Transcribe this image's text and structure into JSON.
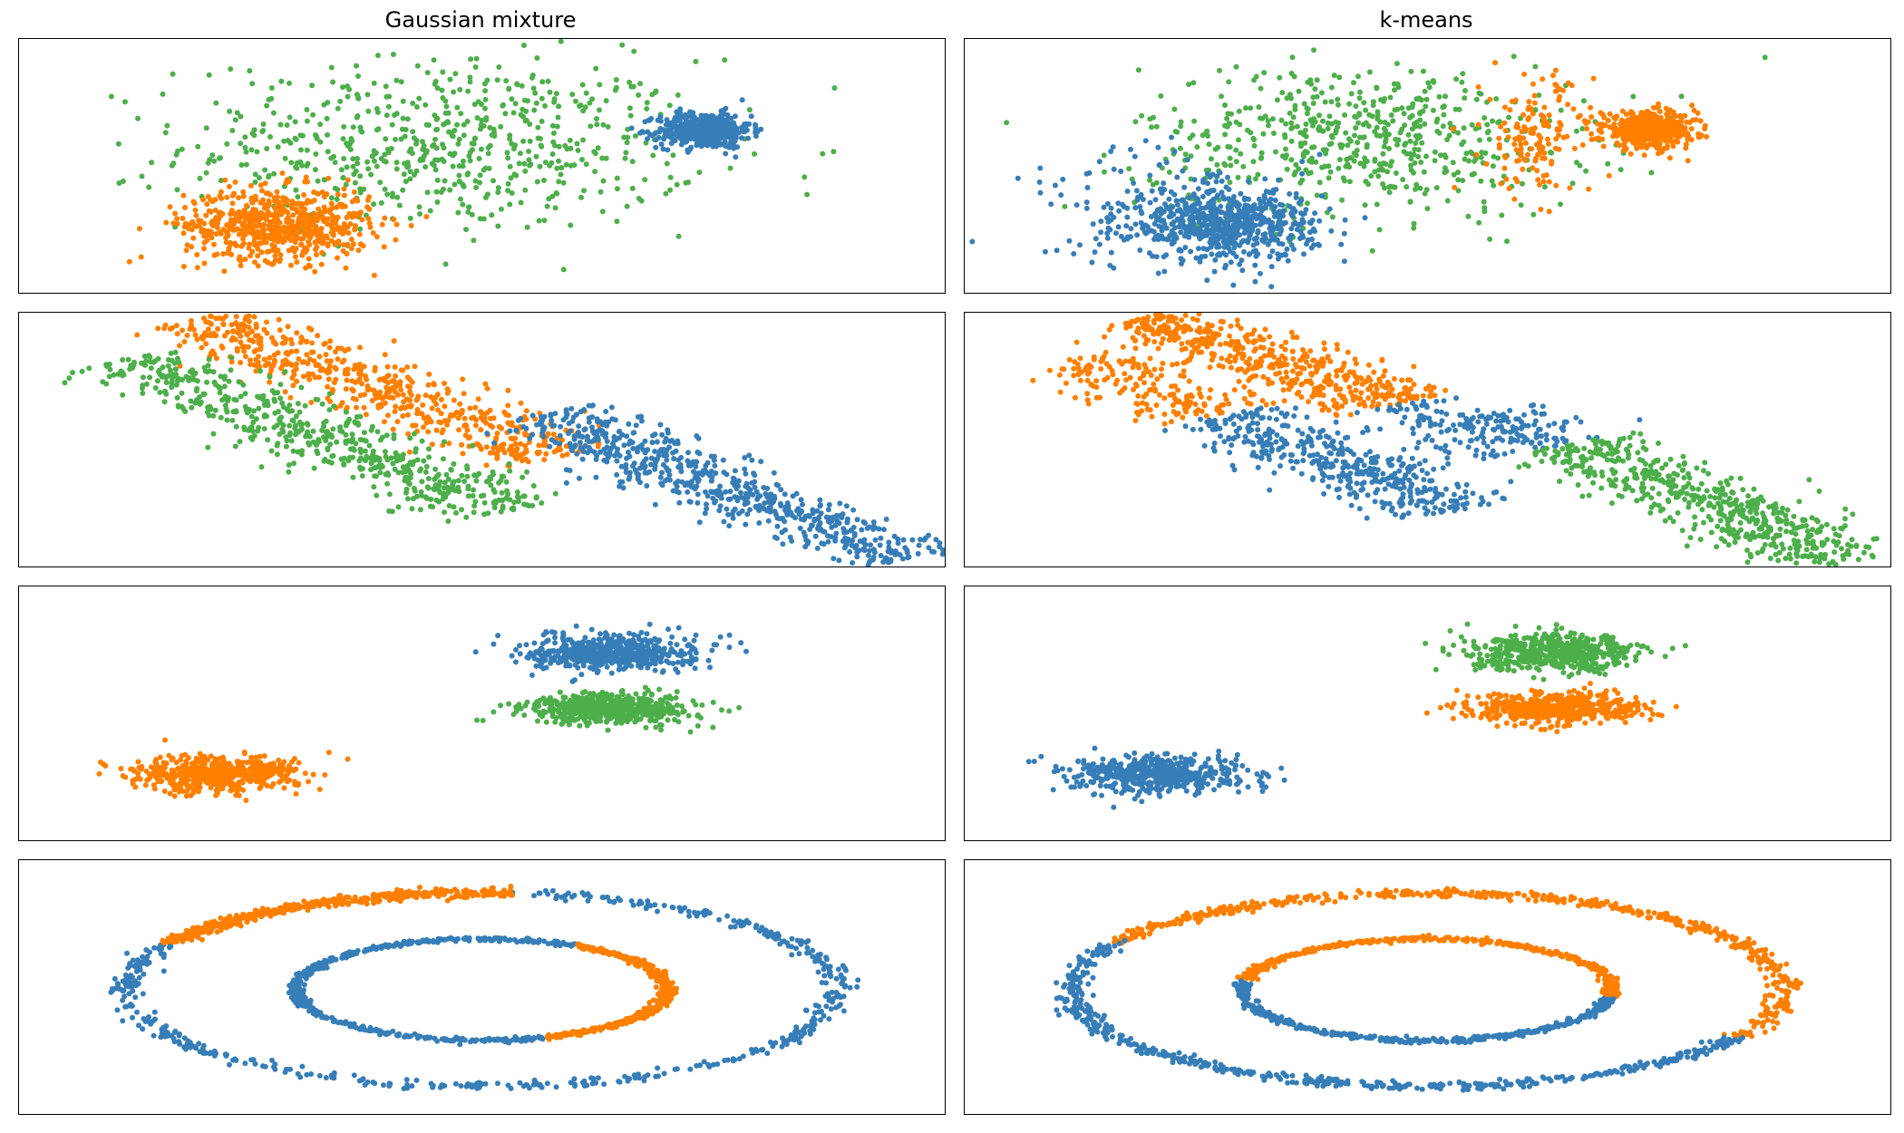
{
  "figure": {
    "titles": {
      "gaussian": "Gaussian mixture",
      "kmeans": "k-means"
    }
  },
  "colors": {
    "cluster_0": "#377eb8",
    "cluster_1": "#ff7f00",
    "cluster_2": "#4daf4a"
  },
  "chart_data": [
    {
      "type": "scatter",
      "title": "Gaussian mixture",
      "row": 1,
      "column": "Gaussian mixture",
      "xlim": [
        0,
        1
      ],
      "ylim": [
        0,
        1
      ],
      "axes_ticks": false,
      "series": [
        {
          "color": "#4daf4a",
          "n": 650,
          "shape": "gaussian",
          "center": [
            0.46,
            0.58
          ],
          "spread": [
            0.14,
            0.17
          ]
        },
        {
          "color": "#377eb8",
          "n": 500,
          "shape": "gaussian",
          "center": [
            0.74,
            0.64
          ],
          "spread": [
            0.025,
            0.035
          ]
        },
        {
          "color": "#ff7f00",
          "n": 650,
          "shape": "gaussian",
          "center": [
            0.28,
            0.27
          ],
          "spread": [
            0.05,
            0.07
          ]
        }
      ]
    },
    {
      "type": "scatter",
      "title": "k-means",
      "row": 1,
      "column": "k-means",
      "xlim": [
        0,
        1
      ],
      "ylim": [
        0,
        1
      ],
      "axes_ticks": false,
      "series": [
        {
          "color": "#4daf4a",
          "n": 600,
          "shape": "gaussian",
          "center": [
            0.43,
            0.6
          ],
          "spread": [
            0.12,
            0.15
          ]
        },
        {
          "color": "#ff7f00",
          "n": 150,
          "shape": "gaussian",
          "center": [
            0.62,
            0.62
          ],
          "spread": [
            0.03,
            0.12
          ]
        },
        {
          "color": "#ff7f00",
          "n": 500,
          "shape": "gaussian",
          "center": [
            0.74,
            0.64
          ],
          "spread": [
            0.025,
            0.035
          ]
        },
        {
          "color": "#377eb8",
          "n": 650,
          "shape": "gaussian",
          "center": [
            0.28,
            0.27
          ],
          "spread": [
            0.05,
            0.07
          ]
        },
        {
          "color": "#377eb8",
          "n": 100,
          "shape": "gaussian",
          "center": [
            0.22,
            0.35
          ],
          "spread": [
            0.08,
            0.12
          ]
        }
      ]
    },
    {
      "type": "scatter",
      "title": "Gaussian mixture",
      "row": 2,
      "column": "Gaussian mixture",
      "xlim": [
        0,
        1
      ],
      "ylim": [
        0,
        1
      ],
      "axes_ticks": false,
      "series": [
        {
          "color": "#ff7f00",
          "n": 600,
          "shape": "line",
          "from": [
            0.19,
            0.98
          ],
          "to": [
            0.58,
            0.43
          ],
          "width": 0.04
        },
        {
          "color": "#4daf4a",
          "n": 600,
          "shape": "line",
          "from": [
            0.12,
            0.82
          ],
          "to": [
            0.53,
            0.22
          ],
          "width": 0.04
        },
        {
          "color": "#377eb8",
          "n": 650,
          "shape": "line",
          "from": [
            0.56,
            0.6
          ],
          "to": [
            0.96,
            0.02
          ],
          "width": 0.04
        }
      ]
    },
    {
      "type": "scatter",
      "title": "k-means",
      "row": 2,
      "column": "k-means",
      "xlim": [
        0,
        1
      ],
      "ylim": [
        0,
        1
      ],
      "axes_ticks": false,
      "series": [
        {
          "color": "#ff7f00",
          "n": 500,
          "shape": "line",
          "from": [
            0.19,
            0.98
          ],
          "to": [
            0.47,
            0.64
          ],
          "width": 0.04
        },
        {
          "color": "#377eb8",
          "n": 100,
          "shape": "line",
          "from": [
            0.47,
            0.64
          ],
          "to": [
            0.58,
            0.43
          ],
          "width": 0.04
        },
        {
          "color": "#ff7f00",
          "n": 180,
          "shape": "line",
          "from": [
            0.12,
            0.82
          ],
          "to": [
            0.28,
            0.6
          ],
          "width": 0.04
        },
        {
          "color": "#377eb8",
          "n": 420,
          "shape": "line",
          "from": [
            0.28,
            0.6
          ],
          "to": [
            0.53,
            0.22
          ],
          "width": 0.04
        },
        {
          "color": "#377eb8",
          "n": 100,
          "shape": "line",
          "from": [
            0.56,
            0.6
          ],
          "to": [
            0.65,
            0.48
          ],
          "width": 0.04
        },
        {
          "color": "#4daf4a",
          "n": 550,
          "shape": "line",
          "from": [
            0.65,
            0.48
          ],
          "to": [
            0.96,
            0.02
          ],
          "width": 0.04
        }
      ]
    },
    {
      "type": "scatter",
      "title": "Gaussian mixture",
      "row": 3,
      "column": "Gaussian mixture",
      "xlim": [
        0,
        1
      ],
      "ylim": [
        0,
        1
      ],
      "axes_ticks": false,
      "series": [
        {
          "color": "#377eb8",
          "n": 550,
          "shape": "gaussian",
          "center": [
            0.64,
            0.74
          ],
          "spread": [
            0.045,
            0.035
          ]
        },
        {
          "color": "#4daf4a",
          "n": 550,
          "shape": "gaussian",
          "center": [
            0.64,
            0.52
          ],
          "spread": [
            0.045,
            0.03
          ]
        },
        {
          "color": "#ff7f00",
          "n": 550,
          "shape": "gaussian",
          "center": [
            0.21,
            0.26
          ],
          "spread": [
            0.045,
            0.035
          ]
        }
      ]
    },
    {
      "type": "scatter",
      "title": "k-means",
      "row": 3,
      "column": "k-means",
      "xlim": [
        0,
        1
      ],
      "ylim": [
        0,
        1
      ],
      "axes_ticks": false,
      "series": [
        {
          "color": "#4daf4a",
          "n": 550,
          "shape": "gaussian",
          "center": [
            0.64,
            0.74
          ],
          "spread": [
            0.045,
            0.035
          ]
        },
        {
          "color": "#ff7f00",
          "n": 550,
          "shape": "gaussian",
          "center": [
            0.64,
            0.52
          ],
          "spread": [
            0.045,
            0.03
          ]
        },
        {
          "color": "#377eb8",
          "n": 550,
          "shape": "gaussian",
          "center": [
            0.21,
            0.26
          ],
          "spread": [
            0.045,
            0.035
          ]
        }
      ]
    },
    {
      "type": "scatter",
      "title": "Gaussian mixture",
      "row": 4,
      "column": "Gaussian mixture",
      "xlim": [
        0,
        1
      ],
      "ylim": [
        0,
        1
      ],
      "axes_ticks": false,
      "series": [
        {
          "color": "#377eb8",
          "n": 520,
          "shape": "arc",
          "center": [
            0.5,
            0.49
          ],
          "radii": [
            0.385,
            0.38
          ],
          "angles": [
            -210,
            85
          ],
          "noise": 0.025
        },
        {
          "color": "#ff7f00",
          "n": 520,
          "shape": "arc",
          "center": [
            0.5,
            0.49
          ],
          "radii": [
            0.385,
            0.38
          ],
          "angles": [
            85,
            150
          ],
          "noise": 0.025
        },
        {
          "color": "#377eb8",
          "n": 430,
          "shape": "arc",
          "center": [
            0.5,
            0.49
          ],
          "radii": [
            0.2,
            0.2
          ],
          "angles": [
            60,
            290
          ],
          "noise": 0.025
        },
        {
          "color": "#ff7f00",
          "n": 430,
          "shape": "arc",
          "center": [
            0.5,
            0.49
          ],
          "radii": [
            0.2,
            0.2
          ],
          "angles": [
            -70,
            60
          ],
          "noise": 0.025
        }
      ]
    },
    {
      "type": "scatter",
      "title": "k-means",
      "row": 4,
      "column": "k-means",
      "xlim": [
        0,
        1
      ],
      "ylim": [
        0,
        1
      ],
      "axes_ticks": false,
      "series": [
        {
          "color": "#ff7f00",
          "n": 520,
          "shape": "arc",
          "center": [
            0.5,
            0.49
          ],
          "radii": [
            0.385,
            0.38
          ],
          "angles": [
            -30,
            150
          ],
          "noise": 0.025
        },
        {
          "color": "#377eb8",
          "n": 520,
          "shape": "arc",
          "center": [
            0.5,
            0.49
          ],
          "radii": [
            0.385,
            0.38
          ],
          "angles": [
            150,
            330
          ],
          "noise": 0.025
        },
        {
          "color": "#ff7f00",
          "n": 430,
          "shape": "arc",
          "center": [
            0.5,
            0.49
          ],
          "radii": [
            0.2,
            0.2
          ],
          "angles": [
            -10,
            170
          ],
          "noise": 0.025
        },
        {
          "color": "#377eb8",
          "n": 430,
          "shape": "arc",
          "center": [
            0.5,
            0.49
          ],
          "radii": [
            0.2,
            0.2
          ],
          "angles": [
            170,
            350
          ],
          "noise": 0.025
        }
      ]
    }
  ]
}
